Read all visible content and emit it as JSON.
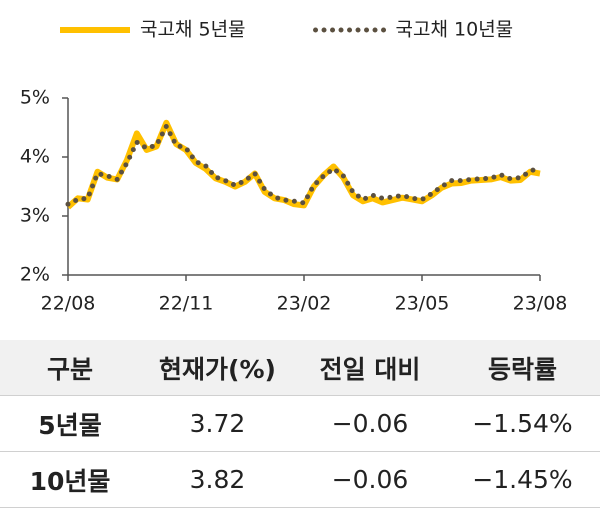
{
  "chart_data": {
    "type": "line",
    "x": [
      0,
      0.25,
      0.5,
      0.75,
      1,
      1.25,
      1.5,
      1.75,
      2,
      2.25,
      2.5,
      2.75,
      3,
      3.25,
      3.5,
      3.75,
      4,
      4.25,
      4.5,
      4.75,
      5,
      5.25,
      5.5,
      5.75,
      6,
      6.25,
      6.5,
      6.75,
      7,
      7.25,
      7.5,
      7.75,
      8,
      8.25,
      8.5,
      8.75,
      9,
      9.25,
      9.5,
      9.75,
      10,
      10.25,
      10.5,
      10.75,
      11,
      11.25,
      11.5,
      11.75,
      12
    ],
    "xlim": [
      0,
      12
    ],
    "xticks": [
      {
        "value": 0,
        "label": "22/08"
      },
      {
        "value": 3,
        "label": "22/11"
      },
      {
        "value": 6,
        "label": "23/02"
      },
      {
        "value": 9,
        "label": "23/05"
      },
      {
        "value": 12,
        "label": "23/08"
      }
    ],
    "ylim": [
      2,
      5
    ],
    "yticks": [
      {
        "value": 2,
        "label": "2%"
      },
      {
        "value": 3,
        "label": "3%"
      },
      {
        "value": 4,
        "label": "4%"
      },
      {
        "value": 5,
        "label": "5%"
      }
    ],
    "legend": "top",
    "series": [
      {
        "name": "국고채 5년물",
        "color": "#ffc000",
        "style": "solid",
        "values": [
          3.15,
          3.3,
          3.28,
          3.75,
          3.65,
          3.62,
          3.95,
          4.4,
          4.12,
          4.18,
          4.58,
          4.22,
          4.12,
          3.9,
          3.8,
          3.64,
          3.58,
          3.5,
          3.58,
          3.72,
          3.41,
          3.3,
          3.27,
          3.2,
          3.18,
          3.5,
          3.69,
          3.84,
          3.65,
          3.35,
          3.25,
          3.3,
          3.23,
          3.27,
          3.31,
          3.28,
          3.25,
          3.35,
          3.48,
          3.55,
          3.56,
          3.6,
          3.61,
          3.62,
          3.66,
          3.6,
          3.61,
          3.75,
          3.72
        ]
      },
      {
        "name": "국고채 10년물",
        "color": "#5b5040",
        "style": "dotted",
        "values": [
          3.2,
          3.28,
          3.3,
          3.72,
          3.68,
          3.62,
          3.9,
          4.25,
          4.15,
          4.2,
          4.52,
          4.2,
          4.15,
          3.92,
          3.85,
          3.66,
          3.6,
          3.52,
          3.6,
          3.72,
          3.45,
          3.32,
          3.27,
          3.25,
          3.22,
          3.52,
          3.68,
          3.8,
          3.68,
          3.4,
          3.28,
          3.35,
          3.3,
          3.32,
          3.35,
          3.3,
          3.28,
          3.38,
          3.5,
          3.6,
          3.6,
          3.62,
          3.63,
          3.64,
          3.7,
          3.63,
          3.65,
          3.76,
          3.82
        ]
      }
    ]
  },
  "table": {
    "header": [
      "구분",
      "현재가(%)",
      "전일 대비",
      "등락률"
    ],
    "rows": [
      [
        "5년물",
        "3.72",
        "−0.06",
        "−1.54%"
      ],
      [
        "10년물",
        "3.82",
        "−0.06",
        "−1.45%"
      ]
    ]
  }
}
